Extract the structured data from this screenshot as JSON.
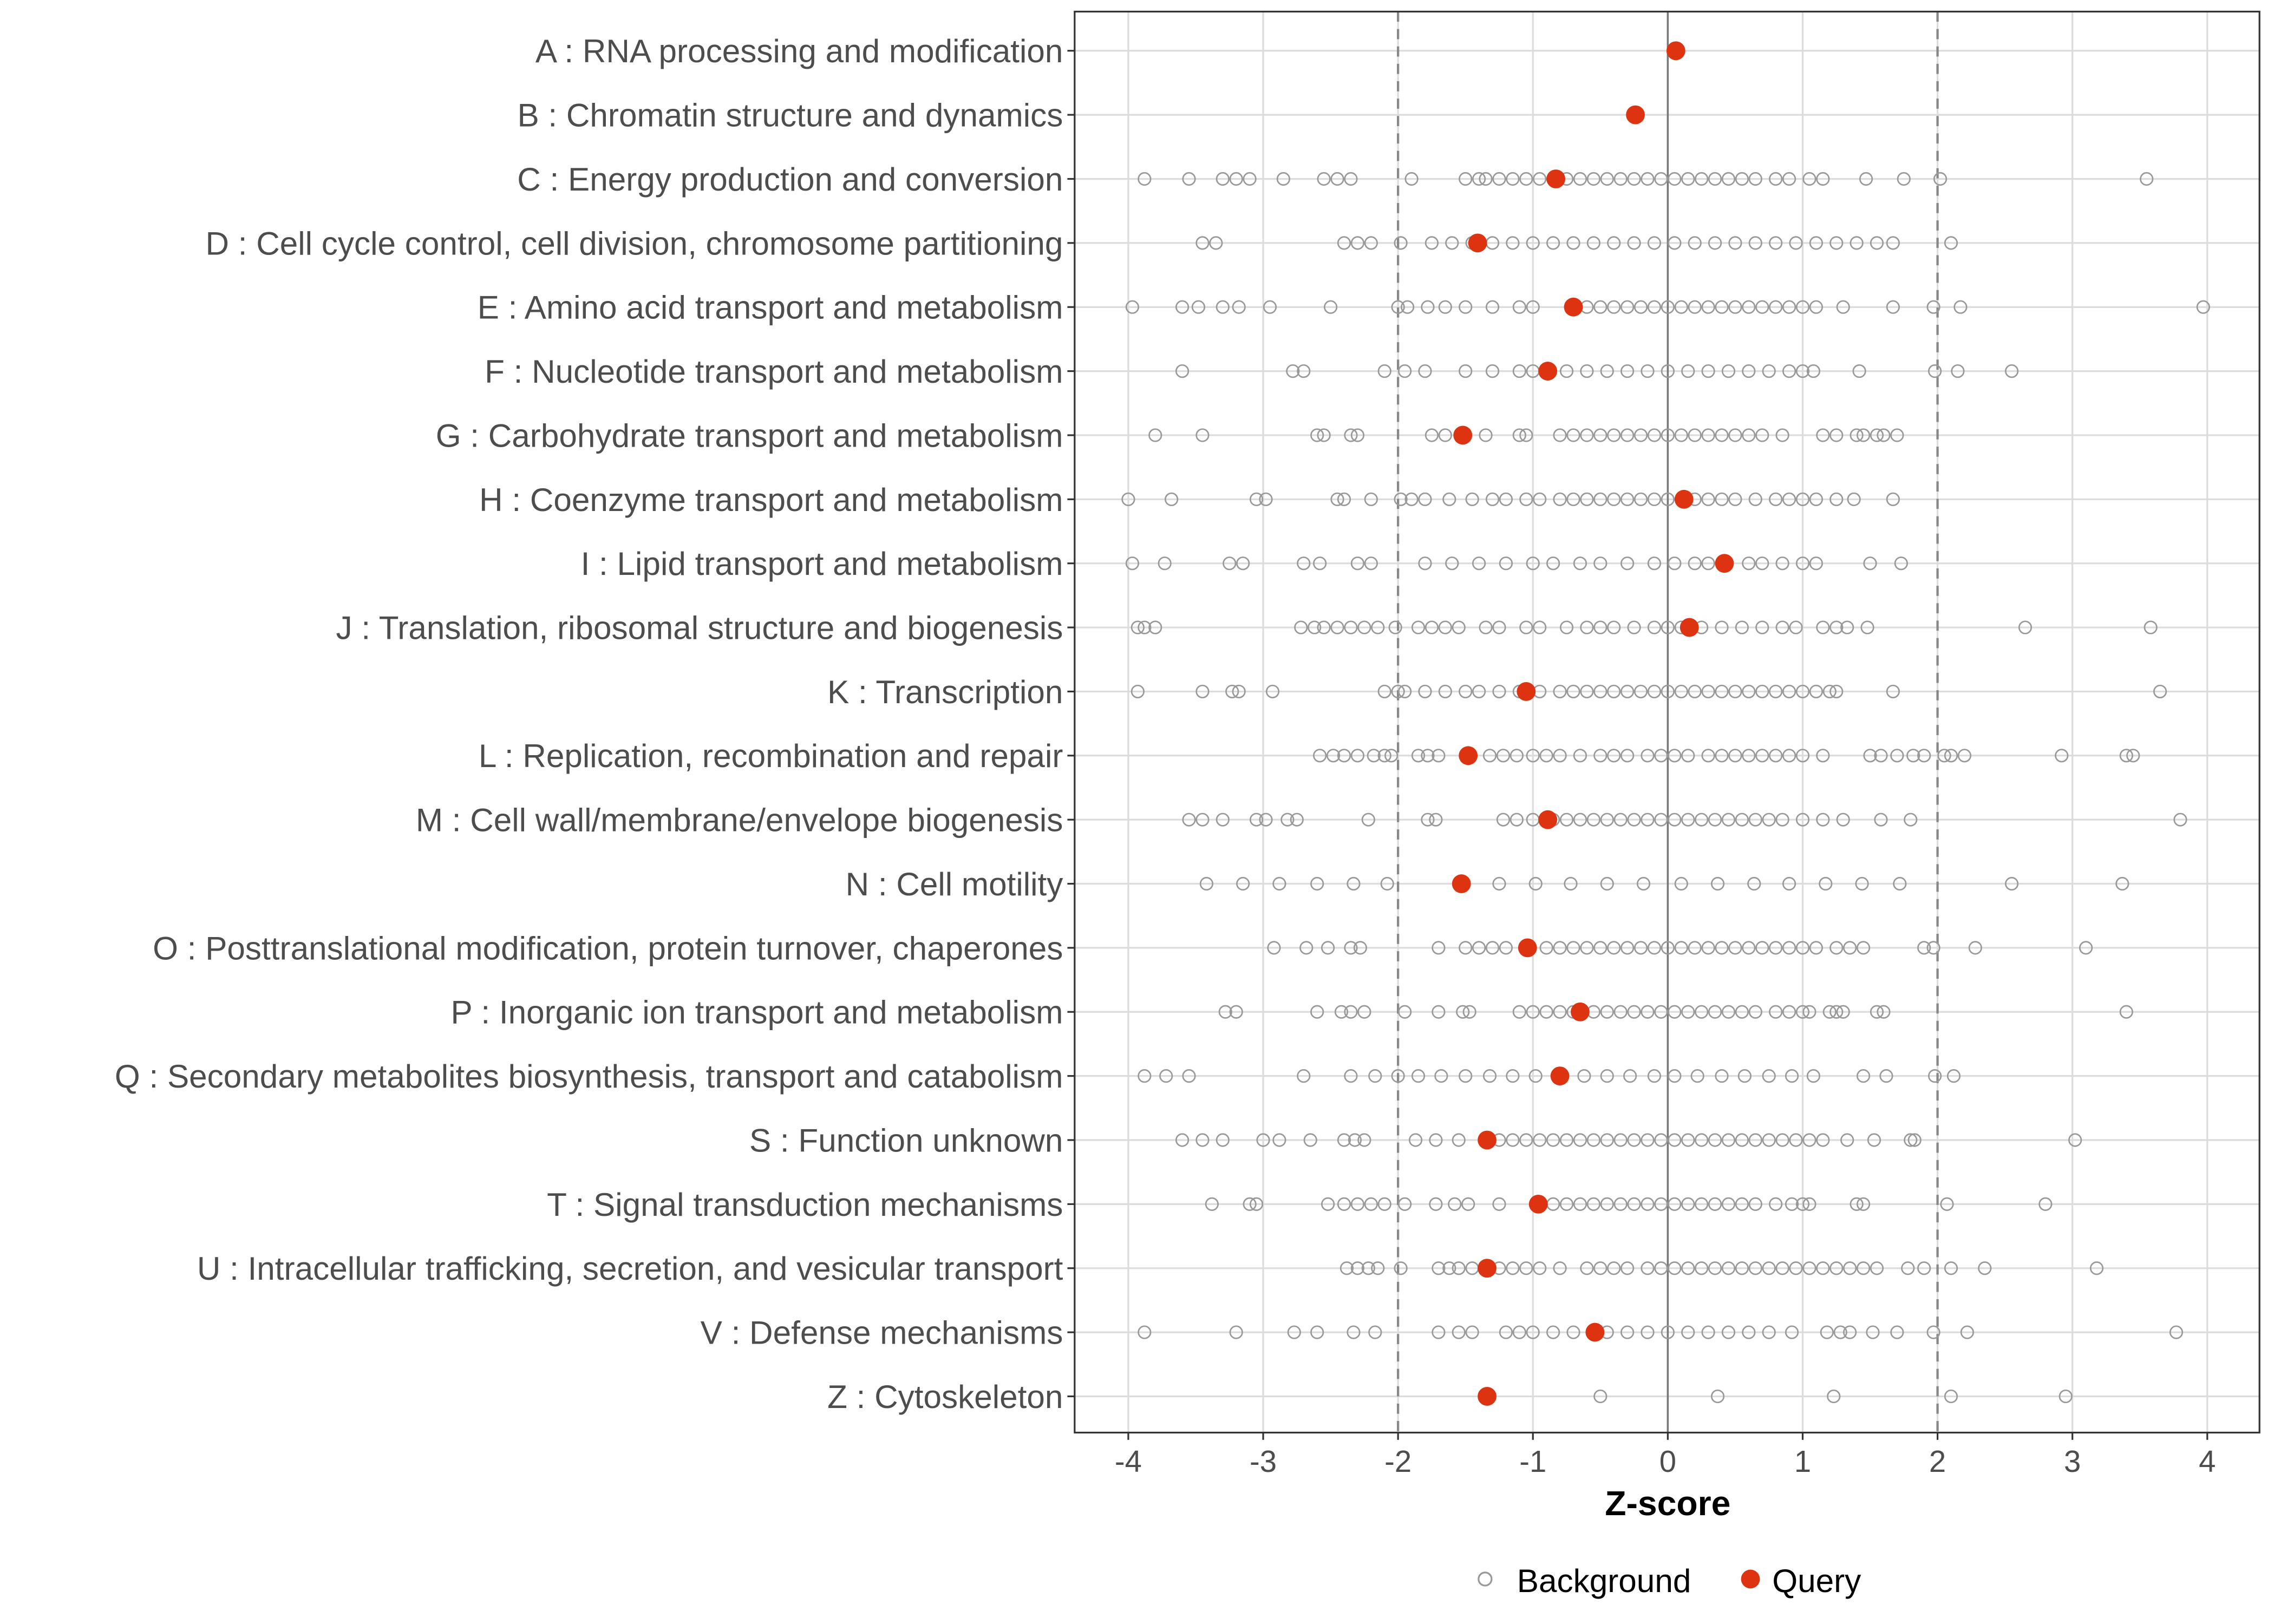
{
  "chart_data": {
    "type": "scatter",
    "title": "",
    "xlabel": "Z-score",
    "ylabel": "",
    "xlim": [
      -4.4,
      4.4
    ],
    "x_ticks": [
      -4,
      -3,
      -2,
      -1,
      0,
      1,
      2,
      3,
      4
    ],
    "reference_lines": {
      "dashed": [
        -2,
        2
      ],
      "solid": [
        0
      ]
    },
    "grid": true,
    "legend": {
      "position": "bottom",
      "entries": [
        "Background",
        "Query"
      ]
    },
    "colors": {
      "background": "#999999",
      "query": "#dd3311"
    },
    "categories": [
      "A : RNA processing and modification",
      "B : Chromatin structure and dynamics",
      "C : Energy production and conversion",
      "D : Cell cycle control, cell division, chromosome partitioning",
      "E : Amino acid transport and metabolism",
      "F : Nucleotide transport and metabolism",
      "G : Carbohydrate transport and metabolism",
      "H : Coenzyme transport and metabolism",
      "I : Lipid transport and metabolism",
      "J : Translation, ribosomal structure and biogenesis",
      "K : Transcription",
      "L : Replication, recombination and repair",
      "M : Cell wall/membrane/envelope biogenesis",
      "N : Cell motility",
      "O : Posttranslational modification, protein turnover, chaperones",
      "P : Inorganic ion transport and metabolism",
      "Q : Secondary metabolites biosynthesis, transport and catabolism",
      "S : Function unknown",
      "T : Signal transduction mechanisms",
      "U : Intracellular trafficking, secretion, and vesicular transport",
      "V : Defense mechanisms",
      "Z : Cytoskeleton"
    ],
    "query": [
      0.06,
      -0.24,
      -0.83,
      -1.41,
      -0.7,
      -0.89,
      -1.52,
      0.12,
      0.42,
      0.16,
      -1.05,
      -1.48,
      -0.89,
      -1.53,
      -1.04,
      -0.65,
      -0.8,
      -1.34,
      -0.96,
      -1.34,
      -0.54,
      -1.34
    ],
    "background": [
      [],
      [],
      [
        -3.88,
        -3.55,
        -3.3,
        -3.2,
        -3.1,
        -2.85,
        -2.55,
        -2.45,
        -2.35,
        -1.9,
        -1.5,
        -1.4,
        -1.35,
        -1.25,
        -1.15,
        -1.05,
        -0.95,
        -0.85,
        -0.75,
        -0.65,
        -0.55,
        -0.45,
        -0.35,
        -0.25,
        -0.15,
        -0.05,
        0.05,
        0.15,
        0.25,
        0.35,
        0.45,
        0.55,
        0.65,
        0.8,
        0.9,
        1.05,
        1.15,
        1.47,
        1.75,
        2.02,
        3.55
      ],
      [
        -3.45,
        -3.35,
        -2.4,
        -2.3,
        -2.2,
        -1.98,
        -1.75,
        -1.6,
        -1.45,
        -1.3,
        -1.15,
        -1.0,
        -0.85,
        -0.7,
        -0.55,
        -0.4,
        -0.25,
        -0.1,
        0.05,
        0.2,
        0.35,
        0.5,
        0.65,
        0.8,
        0.95,
        1.1,
        1.25,
        1.4,
        1.55,
        1.67,
        2.1
      ],
      [
        -3.97,
        -3.6,
        -3.48,
        -3.3,
        -3.18,
        -2.95,
        -2.5,
        -2.0,
        -1.93,
        -1.78,
        -1.65,
        -1.5,
        -1.3,
        -1.1,
        -1.0,
        -0.6,
        -0.5,
        -0.4,
        -0.3,
        -0.2,
        -0.1,
        0.0,
        0.1,
        0.2,
        0.3,
        0.4,
        0.5,
        0.6,
        0.7,
        0.8,
        0.9,
        1.0,
        1.1,
        1.3,
        1.67,
        1.97,
        2.17,
        3.97
      ],
      [
        -3.6,
        -2.78,
        -2.7,
        -2.1,
        -1.95,
        -1.8,
        -1.5,
        -1.3,
        -1.1,
        -1.0,
        -0.75,
        -0.6,
        -0.45,
        -0.3,
        -0.15,
        0.0,
        0.15,
        0.3,
        0.45,
        0.6,
        0.75,
        0.9,
        1.0,
        1.08,
        1.42,
        1.98,
        2.15,
        2.55
      ],
      [
        -3.8,
        -3.45,
        -2.6,
        -2.55,
        -2.35,
        -2.3,
        -1.75,
        -1.65,
        -1.35,
        -1.1,
        -1.05,
        -0.8,
        -0.7,
        -0.6,
        -0.5,
        -0.4,
        -0.3,
        -0.2,
        -0.1,
        0.0,
        0.1,
        0.2,
        0.3,
        0.4,
        0.5,
        0.6,
        0.7,
        0.85,
        1.15,
        1.25,
        1.4,
        1.45,
        1.55,
        1.6,
        1.7
      ],
      [
        -4.0,
        -3.68,
        -3.05,
        -2.98,
        -2.45,
        -2.4,
        -2.2,
        -1.98,
        -1.9,
        -1.8,
        -1.62,
        -1.45,
        -1.3,
        -1.2,
        -1.05,
        -0.95,
        -0.8,
        -0.7,
        -0.6,
        -0.5,
        -0.4,
        -0.3,
        -0.2,
        -0.1,
        0.0,
        0.2,
        0.3,
        0.4,
        0.5,
        0.65,
        0.8,
        0.9,
        1.0,
        1.1,
        1.25,
        1.38,
        1.67
      ],
      [
        -3.97,
        -3.73,
        -3.25,
        -3.15,
        -2.7,
        -2.58,
        -2.3,
        -2.2,
        -1.8,
        -1.6,
        -1.4,
        -1.2,
        -1.0,
        -0.85,
        -0.65,
        -0.5,
        -0.3,
        -0.1,
        0.05,
        0.2,
        0.3,
        0.6,
        0.7,
        0.85,
        1.0,
        1.1,
        1.5,
        1.73
      ],
      [
        -3.93,
        -3.88,
        -3.8,
        -2.72,
        -2.62,
        -2.55,
        -2.45,
        -2.35,
        -2.25,
        -2.15,
        -2.02,
        -1.85,
        -1.75,
        -1.65,
        -1.55,
        -1.35,
        -1.25,
        -1.05,
        -0.95,
        -0.75,
        -0.6,
        -0.5,
        -0.4,
        -0.25,
        -0.1,
        0.0,
        0.1,
        0.25,
        0.4,
        0.55,
        0.7,
        0.85,
        0.95,
        1.15,
        1.25,
        1.33,
        1.48,
        2.65,
        3.58
      ],
      [
        -3.93,
        -3.45,
        -3.23,
        -3.18,
        -2.93,
        -2.1,
        -2.0,
        -1.95,
        -1.8,
        -1.65,
        -1.5,
        -1.4,
        -1.25,
        -1.1,
        -0.95,
        -0.8,
        -0.7,
        -0.6,
        -0.5,
        -0.4,
        -0.3,
        -0.2,
        -0.1,
        0.0,
        0.1,
        0.2,
        0.3,
        0.4,
        0.5,
        0.6,
        0.7,
        0.8,
        0.9,
        1.0,
        1.1,
        1.2,
        1.25,
        1.67,
        3.65
      ],
      [
        -2.58,
        -2.48,
        -2.4,
        -2.3,
        -2.18,
        -2.1,
        -2.05,
        -1.85,
        -1.78,
        -1.7,
        -1.32,
        -1.22,
        -1.12,
        -1.0,
        -0.9,
        -0.8,
        -0.65,
        -0.5,
        -0.4,
        -0.3,
        -0.15,
        -0.05,
        0.05,
        0.15,
        0.3,
        0.4,
        0.5,
        0.6,
        0.7,
        0.8,
        0.9,
        1.0,
        1.15,
        1.5,
        1.58,
        1.7,
        1.82,
        1.9,
        2.05,
        2.1,
        2.2,
        2.92,
        3.4,
        3.45
      ],
      [
        -3.55,
        -3.45,
        -3.3,
        -3.05,
        -2.98,
        -2.82,
        -2.75,
        -2.22,
        -1.78,
        -1.72,
        -1.22,
        -1.12,
        -1.0,
        -0.85,
        -0.75,
        -0.65,
        -0.55,
        -0.45,
        -0.35,
        -0.25,
        -0.15,
        -0.05,
        0.05,
        0.15,
        0.25,
        0.35,
        0.45,
        0.55,
        0.65,
        0.75,
        0.85,
        1.0,
        1.15,
        1.3,
        1.58,
        1.8,
        3.8
      ],
      [
        -3.42,
        -3.15,
        -2.88,
        -2.6,
        -2.33,
        -2.08,
        -1.25,
        -0.98,
        -0.72,
        -0.45,
        -0.18,
        0.1,
        0.37,
        0.64,
        0.9,
        1.17,
        1.44,
        1.72,
        2.55,
        3.37
      ],
      [
        -2.92,
        -2.68,
        -2.52,
        -2.35,
        -2.28,
        -1.7,
        -1.5,
        -1.4,
        -1.3,
        -1.2,
        -0.9,
        -0.8,
        -0.7,
        -0.6,
        -0.5,
        -0.4,
        -0.3,
        -0.2,
        -0.1,
        0.0,
        0.1,
        0.2,
        0.3,
        0.4,
        0.5,
        0.6,
        0.7,
        0.8,
        0.9,
        1.0,
        1.1,
        1.25,
        1.35,
        1.45,
        1.9,
        1.97,
        2.28,
        3.1
      ],
      [
        -3.28,
        -3.2,
        -2.6,
        -2.42,
        -2.35,
        -2.25,
        -1.95,
        -1.7,
        -1.52,
        -1.47,
        -1.1,
        -1.0,
        -0.9,
        -0.8,
        -0.7,
        -0.55,
        -0.45,
        -0.35,
        -0.25,
        -0.15,
        -0.05,
        0.05,
        0.15,
        0.25,
        0.35,
        0.45,
        0.55,
        0.65,
        0.8,
        0.9,
        1.0,
        1.05,
        1.2,
        1.25,
        1.3,
        1.55,
        1.6,
        3.4
      ],
      [
        -3.88,
        -3.72,
        -3.55,
        -2.7,
        -2.35,
        -2.17,
        -2.0,
        -1.85,
        -1.68,
        -1.5,
        -1.32,
        -1.15,
        -0.98,
        -0.62,
        -0.45,
        -0.28,
        -0.1,
        0.05,
        0.22,
        0.4,
        0.57,
        0.75,
        0.92,
        1.08,
        1.45,
        1.62,
        1.98,
        2.12
      ],
      [
        -3.6,
        -3.45,
        -3.3,
        -3.0,
        -2.88,
        -2.65,
        -2.4,
        -2.32,
        -2.25,
        -1.87,
        -1.72,
        -1.55,
        -1.25,
        -1.15,
        -1.05,
        -0.95,
        -0.85,
        -0.75,
        -0.65,
        -0.55,
        -0.45,
        -0.35,
        -0.25,
        -0.15,
        -0.05,
        0.05,
        0.15,
        0.25,
        0.35,
        0.45,
        0.55,
        0.65,
        0.75,
        0.85,
        0.95,
        1.05,
        1.15,
        1.33,
        1.53,
        1.8,
        1.83,
        3.02
      ],
      [
        -3.38,
        -3.1,
        -3.05,
        -2.52,
        -2.4,
        -2.3,
        -2.2,
        -2.1,
        -1.95,
        -1.72,
        -1.58,
        -1.48,
        -1.25,
        -0.85,
        -0.75,
        -0.65,
        -0.55,
        -0.45,
        -0.35,
        -0.25,
        -0.15,
        -0.05,
        0.05,
        0.15,
        0.25,
        0.35,
        0.45,
        0.55,
        0.65,
        0.8,
        0.92,
        1.0,
        1.05,
        1.4,
        1.45,
        2.07,
        2.8
      ],
      [
        -2.38,
        -2.3,
        -2.22,
        -2.15,
        -1.98,
        -1.7,
        -1.62,
        -1.55,
        -1.45,
        -1.25,
        -1.15,
        -1.05,
        -0.95,
        -0.8,
        -0.6,
        -0.5,
        -0.4,
        -0.3,
        -0.15,
        -0.05,
        0.05,
        0.15,
        0.25,
        0.35,
        0.45,
        0.55,
        0.65,
        0.75,
        0.85,
        0.95,
        1.05,
        1.15,
        1.25,
        1.35,
        1.45,
        1.55,
        1.78,
        1.9,
        2.1,
        2.35,
        3.18
      ],
      [
        -3.88,
        -3.2,
        -2.77,
        -2.6,
        -2.33,
        -2.17,
        -1.7,
        -1.55,
        -1.45,
        -1.2,
        -1.1,
        -1.0,
        -0.85,
        -0.7,
        -0.45,
        -0.3,
        -0.15,
        0.0,
        0.15,
        0.3,
        0.45,
        0.6,
        0.75,
        0.92,
        1.18,
        1.28,
        1.35,
        1.52,
        1.7,
        1.97,
        2.22,
        3.77
      ],
      [
        -0.5,
        0.37,
        1.23,
        2.1,
        2.95
      ]
    ]
  }
}
